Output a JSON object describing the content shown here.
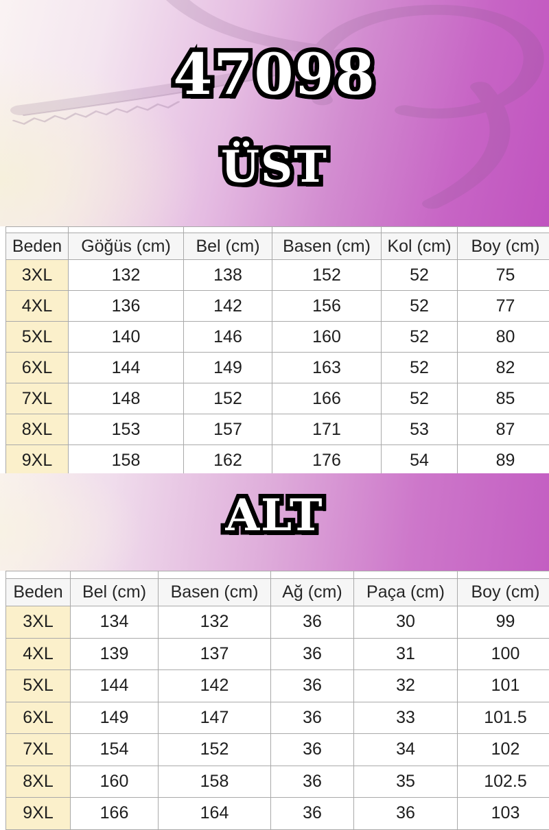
{
  "product_code": "47098",
  "sections": {
    "top_label": "ÜST",
    "bottom_label": "ALT"
  },
  "tables": {
    "ust": {
      "columns": [
        "Beden",
        "Göğüs (cm)",
        "Bel (cm)",
        "Basen (cm)",
        "Kol (cm)",
        "Boy (cm)"
      ],
      "rows": [
        [
          "3XL",
          "132",
          "138",
          "152",
          "52",
          "75"
        ],
        [
          "4XL",
          "136",
          "142",
          "156",
          "52",
          "77"
        ],
        [
          "5XL",
          "140",
          "146",
          "160",
          "52",
          "80"
        ],
        [
          "6XL",
          "144",
          "149",
          "163",
          "52",
          "82"
        ],
        [
          "7XL",
          "148",
          "152",
          "166",
          "52",
          "85"
        ],
        [
          "8XL",
          "153",
          "157",
          "171",
          "53",
          "87"
        ],
        [
          "9XL",
          "158",
          "162",
          "176",
          "54",
          "89"
        ]
      ]
    },
    "alt": {
      "columns": [
        "Beden",
        "Bel (cm)",
        "Basen (cm)",
        "Ağ (cm)",
        "Paça (cm)",
        "Boy (cm)"
      ],
      "rows": [
        [
          "3XL",
          "134",
          "132",
          "36",
          "30",
          "99"
        ],
        [
          "4XL",
          "139",
          "137",
          "36",
          "31",
          "100"
        ],
        [
          "5XL",
          "144",
          "142",
          "36",
          "32",
          "101"
        ],
        [
          "6XL",
          "149",
          "147",
          "36",
          "33",
          "101.5"
        ],
        [
          "7XL",
          "154",
          "152",
          "36",
          "34",
          "102"
        ],
        [
          "8XL",
          "160",
          "158",
          "36",
          "35",
          "102.5"
        ],
        [
          "9XL",
          "166",
          "164",
          "36",
          "36",
          "103"
        ]
      ]
    }
  },
  "colors": {
    "accent_purple": "#c053bf",
    "pale_left": "#faf3f3",
    "size_cell_cream": "#fbf0cb",
    "grid_line": "#a9a9a9",
    "title_fill": "#ffffff",
    "title_outline": "#000000"
  }
}
